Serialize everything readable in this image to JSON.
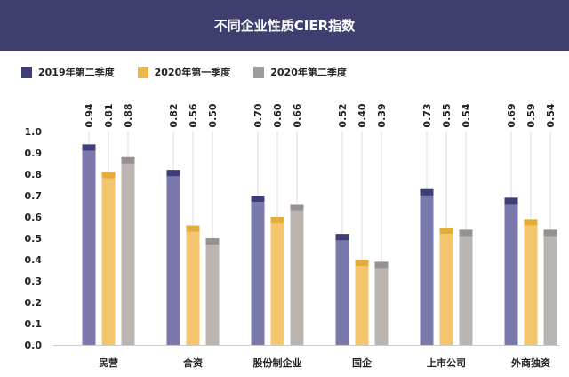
{
  "chart_data": {
    "type": "bar",
    "title": "不同企业性质CIER指数",
    "categories": [
      "民营",
      "合资",
      "股份制企业",
      "国企",
      "上市公司",
      "外商独资"
    ],
    "series": [
      {
        "name": "2019年第二季度",
        "values": [
          0.94,
          0.82,
          0.7,
          0.52,
          0.73,
          0.69
        ],
        "color": "#7b78ac",
        "cap_color": "#3e3f78"
      },
      {
        "name": "2020年第一季度",
        "values": [
          0.81,
          0.56,
          0.6,
          0.4,
          0.55,
          0.59
        ],
        "color": "#f3c56c",
        "cap_color": "#e3ad3c"
      },
      {
        "name": "2020年第二季度",
        "values": [
          0.88,
          0.5,
          0.66,
          0.39,
          0.54,
          0.54
        ],
        "color": "#bbb5b2",
        "cap_color": "#979191"
      }
    ],
    "data_labels": [
      [
        "0.94",
        "0.82",
        "0.70",
        "0.52",
        "0.73",
        "0.69"
      ],
      [
        "0.81",
        "0.56",
        "0.60",
        "0.40",
        "0.55",
        "0.59"
      ],
      [
        "0.88",
        "0.50",
        "0.66",
        "0.39",
        "0.54",
        "0.54"
      ]
    ],
    "ylim": [
      0,
      1.0
    ],
    "yticks": [
      "0.0",
      "0.1",
      "0.2",
      "0.3",
      "0.4",
      "0.5",
      "0.6",
      "0.7",
      "0.8",
      "0.9",
      "1.0"
    ],
    "legend_position": "top-left",
    "grid": false,
    "header_color": "#3e3f6f"
  }
}
